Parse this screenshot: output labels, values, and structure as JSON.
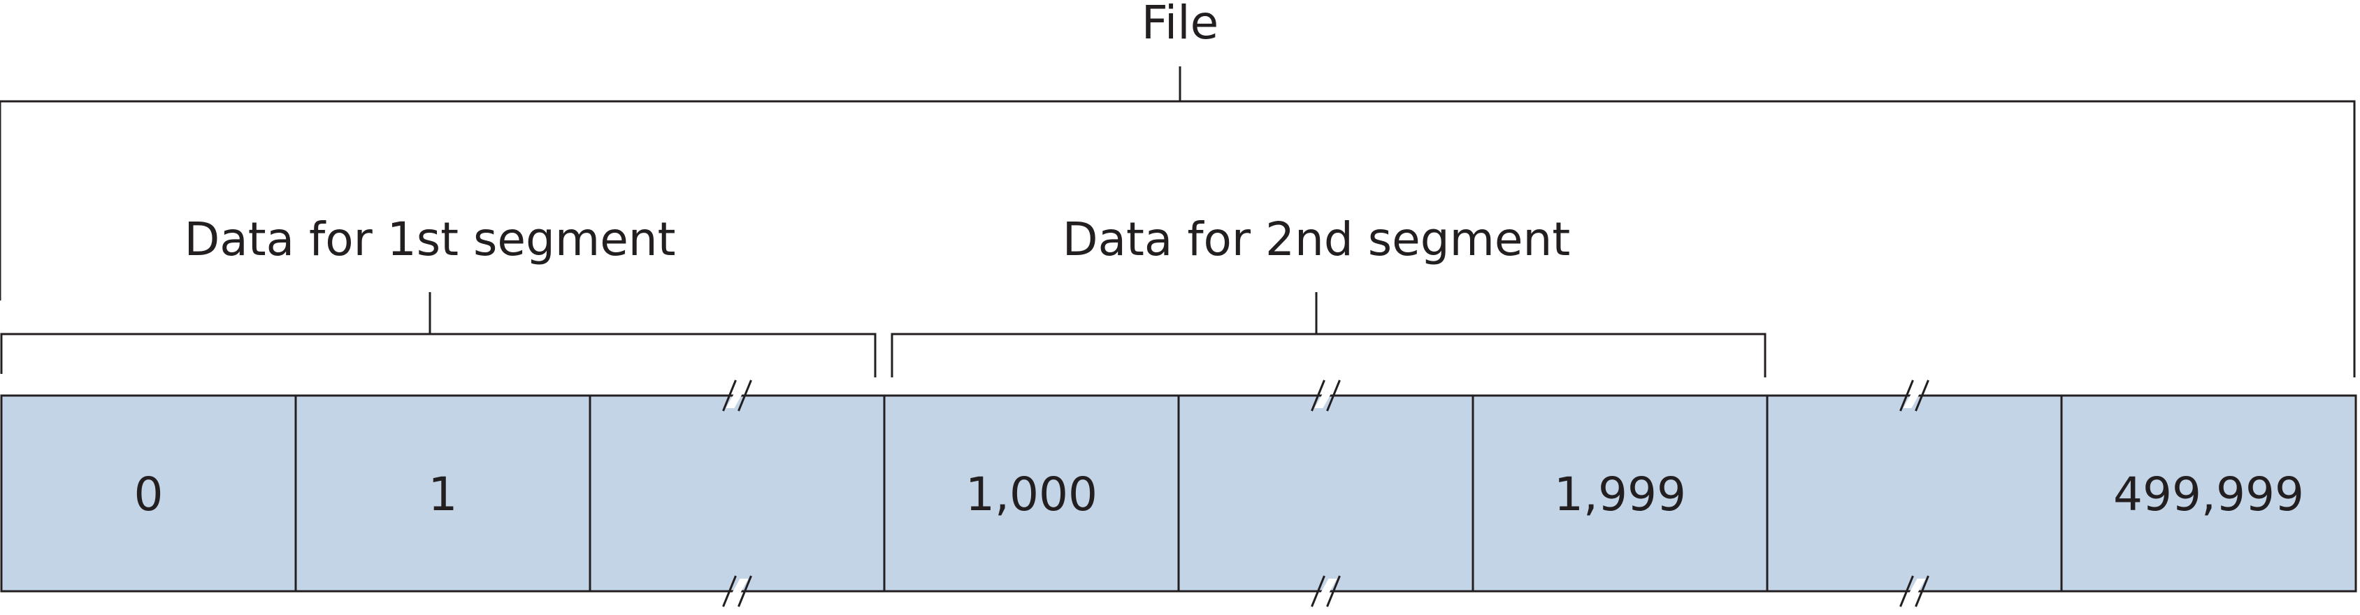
{
  "file_label": "File",
  "segment_labels": [
    "Data for 1st segment",
    "Data for 2nd segment"
  ],
  "cells": [
    {
      "label": "0"
    },
    {
      "label": "1"
    },
    {
      "label": "",
      "break": true
    },
    {
      "label": "1,000"
    },
    {
      "label": "",
      "break": true
    },
    {
      "label": "1,999"
    },
    {
      "label": "",
      "break": true
    },
    {
      "label": "499,999"
    }
  ],
  "colors": {
    "cell_fill": "#c3d4e7",
    "stroke": "#231f20"
  }
}
